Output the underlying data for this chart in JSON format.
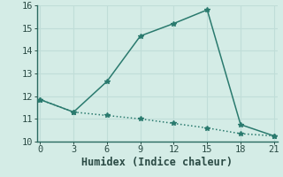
{
  "xlabel": "Humidex (Indice chaleur)",
  "background_color": "#d4ece6",
  "line_color": "#2a7a6e",
  "series1_x": [
    0,
    3,
    6,
    9,
    12,
    15,
    18,
    21
  ],
  "series1_y": [
    11.85,
    11.3,
    12.65,
    14.65,
    15.2,
    15.8,
    10.75,
    10.25
  ],
  "series2_x": [
    0,
    3,
    6,
    9,
    12,
    15,
    18,
    21
  ],
  "series2_y": [
    11.85,
    11.3,
    11.15,
    11.0,
    10.8,
    10.6,
    10.35,
    10.25
  ],
  "xlim": [
    -0.3,
    21.3
  ],
  "ylim": [
    10,
    16
  ],
  "xticks": [
    0,
    3,
    6,
    9,
    12,
    15,
    18,
    21
  ],
  "yticks": [
    10,
    11,
    12,
    13,
    14,
    15,
    16
  ],
  "marker": "*",
  "markersize": 4.0,
  "linewidth": 1.1,
  "grid_color": "#c0ddd8",
  "font_color": "#2a4a44",
  "tick_fontsize": 7.5,
  "xlabel_fontsize": 8.5,
  "spine_color": "#2a6a60"
}
